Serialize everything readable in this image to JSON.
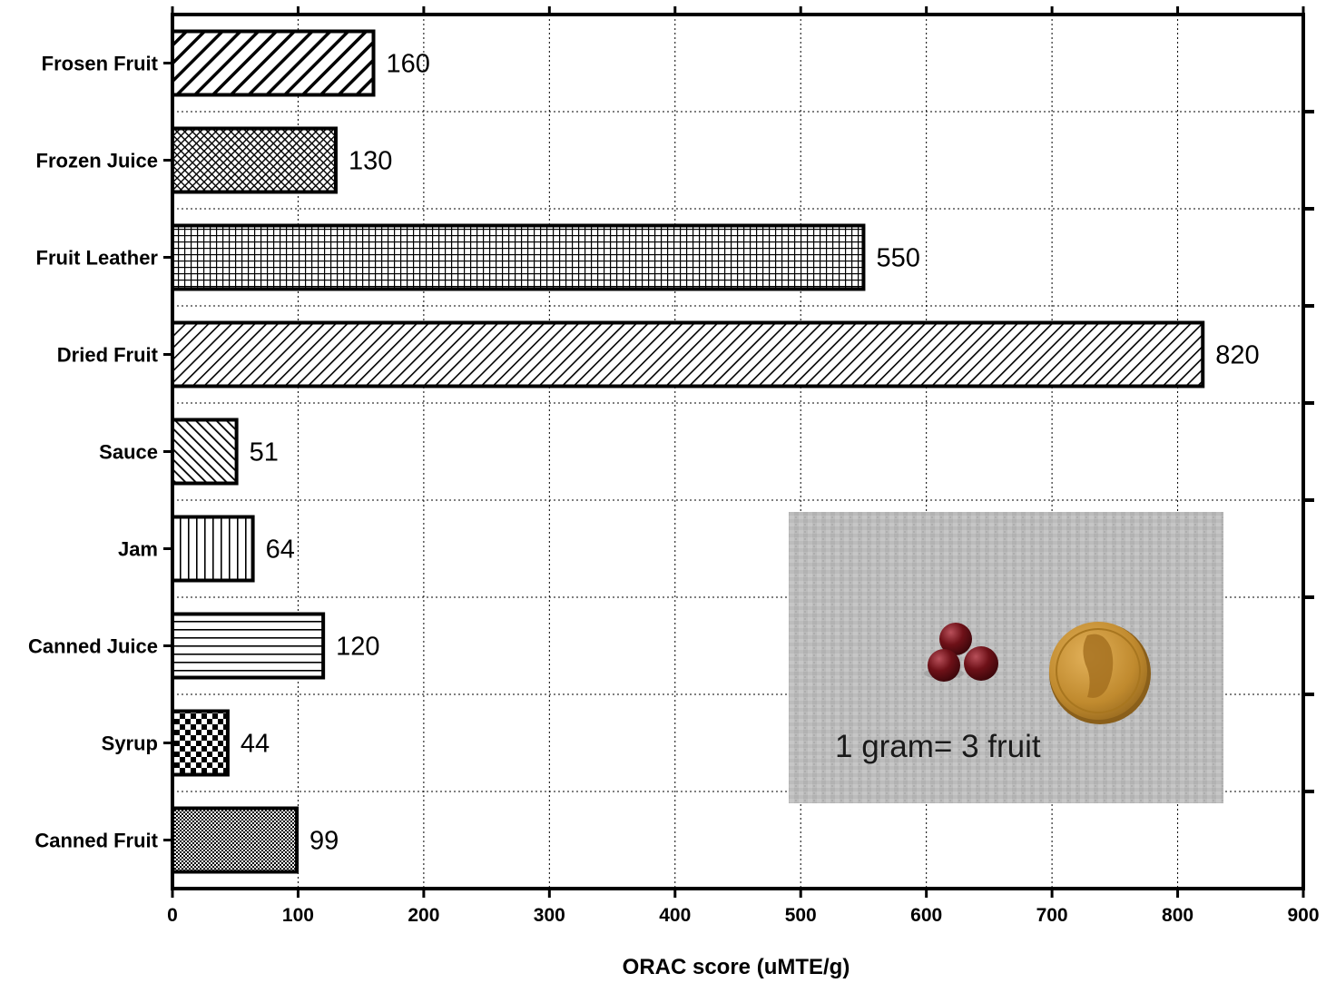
{
  "chart_data": {
    "type": "bar",
    "orientation": "horizontal",
    "categories": [
      "Frosen Fruit",
      "Frozen Juice",
      "Fruit Leather",
      "Dried Fruit",
      "Sauce",
      "Jam",
      "Canned Juice",
      "Syrup",
      "Canned Fruit"
    ],
    "values": [
      160,
      130,
      550,
      820,
      51,
      64,
      120,
      44,
      99
    ],
    "value_labels": [
      "160",
      "130",
      "550",
      "820",
      "51",
      "64",
      "120",
      "44",
      "99"
    ],
    "bar_patterns": [
      "wide-diagonal",
      "crosshatch",
      "grid",
      "fine-diagonal",
      "diagonal-forward",
      "vertical-lines",
      "horizontal-lines",
      "checkerboard",
      "fine-checker"
    ],
    "xlabel": "ORAC score (uMTE/g)",
    "ylabel": "",
    "xlim": [
      0,
      900
    ],
    "xticks": [
      0,
      100,
      200,
      300,
      400,
      500,
      600,
      700,
      800,
      900
    ],
    "xtick_labels": [
      "0",
      "100",
      "200",
      "300",
      "400",
      "500",
      "600",
      "700",
      "800",
      "900"
    ],
    "grid": "dotted",
    "bar_fill": "#ffffff",
    "bar_stroke": "#000000"
  },
  "inset": {
    "caption": "1 gram= 3 fruit",
    "photo": "three-cranberries-beside-coin",
    "background_color": "#b9b9b9",
    "berry_color": "#6e1118",
    "coin_color": "#c08a2e"
  }
}
